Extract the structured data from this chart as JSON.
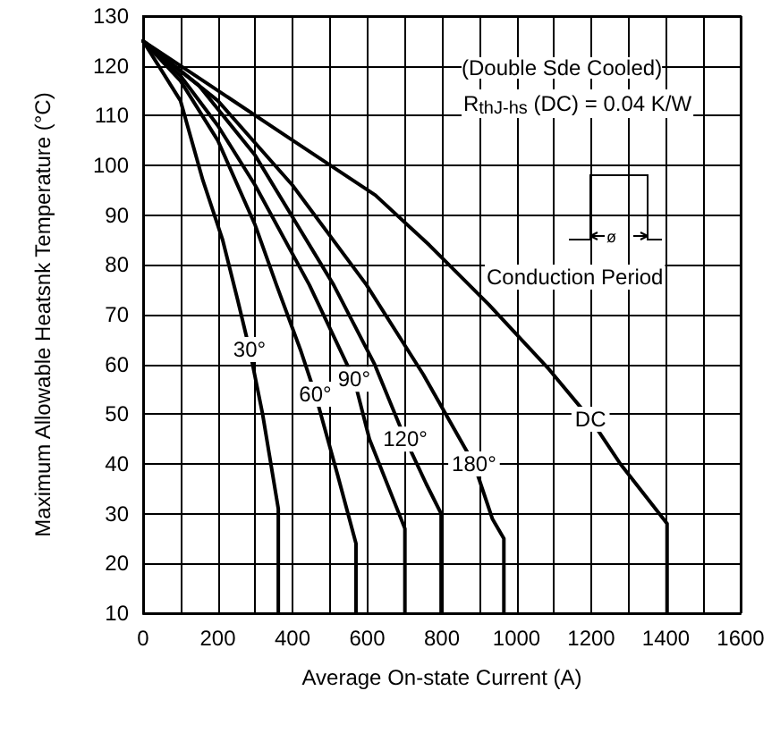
{
  "chart_data": {
    "type": "line",
    "xlabel": "Average On-state Current (A)",
    "ylabel": "Maximum Allowable Heatsnk Temperature (°C)",
    "xlim": [
      0,
      1600
    ],
    "xticks": [
      0,
      200,
      400,
      600,
      800,
      1000,
      1200,
      1400,
      1600
    ],
    "ylim": [
      10,
      130
    ],
    "yticks": [
      10,
      20,
      30,
      40,
      50,
      60,
      70,
      80,
      90,
      100,
      110,
      120,
      130
    ],
    "grid": true,
    "legend": false,
    "marker": "none",
    "line_style": "solid",
    "annotations": [
      "(Double Sde Cooled)",
      "R$_{thJ-hs}$ (DC) = 0.04 K/W",
      "ø",
      "Conduction Period"
    ],
    "series": [
      {
        "name": "30°",
        "color": "#000000",
        "x": [
          0,
          100,
          160,
          213,
          253,
          285,
          320,
          362,
          362
        ],
        "values": [
          125,
          113,
          97,
          85,
          73,
          63,
          50,
          31,
          10
        ]
      },
      {
        "name": "60°",
        "color": "#000000",
        "x": [
          0,
          100,
          200,
          300,
          357,
          421,
          461,
          520,
          570,
          570
        ],
        "values": [
          125,
          117,
          105,
          88,
          76,
          63,
          54,
          38,
          24,
          10
        ]
      },
      {
        "name": "90°",
        "color": "#000000",
        "x": [
          0,
          100,
          200,
          300,
          445,
          565,
          606,
          701,
          701
        ],
        "values": [
          125,
          118,
          108,
          96,
          76,
          57,
          45,
          27,
          10
        ]
      },
      {
        "name": "120°",
        "color": "#000000",
        "x": [
          0,
          150,
          300,
          510,
          620,
          702,
          758,
          798,
          798
        ],
        "values": [
          125,
          116,
          102,
          76,
          60,
          45,
          36,
          30,
          10
        ]
      },
      {
        "name": "180°",
        "color": "#000000",
        "x": [
          0,
          200,
          400,
          598,
          750,
          886,
          935,
          966,
          966
        ],
        "values": [
          125,
          113,
          96,
          76,
          58,
          40,
          29,
          25,
          10
        ]
      },
      {
        "name": "DC",
        "color": "#000000",
        "x": [
          0,
          141,
          381,
          622,
          766,
          926,
          1087,
          1198,
          1278,
          1403,
          1403
        ],
        "values": [
          125,
          118,
          106,
          94,
          84,
          72,
          59,
          49,
          40,
          28,
          10
        ]
      }
    ]
  }
}
